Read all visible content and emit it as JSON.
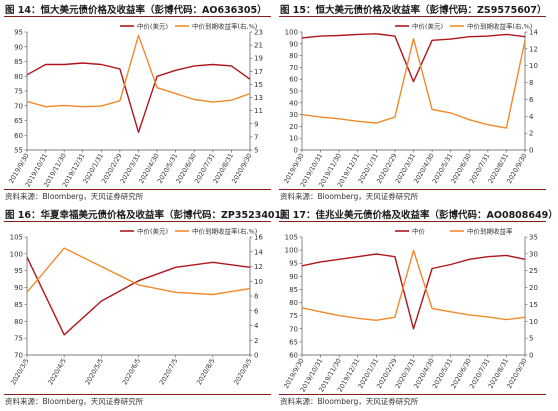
{
  "source_label": "资料来源：Bloomberg，天风证券研究所",
  "colors": {
    "price": "#b0161c",
    "yield": "#f08a2c",
    "rule": "#8b1c1c"
  },
  "panels": [
    {
      "title": "图 14：恒大美元债价格及收益率（彭博代码：AO636305）",
      "source": "资料来源：Bloomberg，天风证券研究所",
      "chart_data": {
        "type": "line",
        "x": [
          "2019/9/30",
          "2019/10/31",
          "2019/11/30",
          "2019/12/31",
          "2020/1/31",
          "2020/2/29",
          "2020/3/31",
          "2020/4/30",
          "2020/5/31",
          "2020/6/30",
          "2020/7/31",
          "2020/8/31",
          "2020/9/30"
        ],
        "ylim": [
          55,
          95
        ],
        "y2lim": [
          5,
          23
        ],
        "yticks": [
          55,
          60,
          65,
          70,
          75,
          80,
          85,
          90,
          95
        ],
        "y2ticks": [
          5,
          7,
          9,
          11,
          13,
          15,
          17,
          19,
          21,
          23
        ],
        "series": [
          {
            "name": "中价(美元)",
            "axis": "left",
            "values": [
              80.5,
              84.0,
              84.0,
              84.5,
              84.0,
              82.5,
              61.0,
              80.0,
              82.0,
              83.5,
              84.0,
              83.5,
              79.0
            ]
          },
          {
            "name": "中价到期收益率(右,%)",
            "axis": "right",
            "values": [
              12.4,
              11.6,
              11.8,
              11.6,
              11.7,
              12.5,
              22.5,
              14.5,
              13.6,
              12.7,
              12.3,
              12.6,
              13.6
            ]
          }
        ]
      }
    },
    {
      "title": "图 15：恒大美元债价格及收益率（彭博代码：ZS9575607）",
      "source": "资料来源：Bloomberg，天风证券研究所",
      "chart_data": {
        "type": "line",
        "x": [
          "2019/9/30",
          "2019/10/31",
          "2019/11/30",
          "2019/12/31",
          "2020/1/31",
          "2020/2/29",
          "2020/3/31",
          "2020/4/30",
          "2020/5/31",
          "2020/6/30",
          "2020/7/31",
          "2020/8/31",
          "2020/9/30"
        ],
        "ylim": [
          0,
          100
        ],
        "y2lim": [
          0,
          14
        ],
        "yticks": [
          0,
          10,
          20,
          30,
          40,
          50,
          60,
          70,
          80,
          90,
          100
        ],
        "y2ticks": [
          0,
          2,
          4,
          6,
          8,
          10,
          12,
          14
        ],
        "series": [
          {
            "name": "中价(美元)",
            "axis": "left",
            "values": [
              95.0,
              96.5,
              97.0,
              98.0,
              98.5,
              96.5,
              58.0,
              93.0,
              94.0,
              96.0,
              96.5,
              98.0,
              96.0
            ]
          },
          {
            "name": "中价到期收益率(右,%)",
            "axis": "right",
            "values": [
              4.2,
              3.9,
              3.7,
              3.4,
              3.2,
              3.9,
              13.2,
              4.8,
              4.4,
              3.6,
              3.0,
              2.6,
              13.0
            ]
          }
        ]
      }
    },
    {
      "title": "图 16：华夏幸福美元债价格及收益率（彭博代码：ZP3523401）",
      "source": "资料来源：Bloomberg，天风证券研究所",
      "chart_data": {
        "type": "line",
        "x": [
          "2020/3/5",
          "2020/4/5",
          "2020/5/5",
          "2020/6/5",
          "2020/7/5",
          "2020/8/5",
          "2020/9/5"
        ],
        "ylim": [
          70,
          105
        ],
        "y2lim": [
          0,
          16
        ],
        "yticks": [
          70,
          75,
          80,
          85,
          90,
          95,
          100,
          105
        ],
        "y2ticks": [
          0,
          2,
          4,
          6,
          8,
          10,
          12,
          14,
          16
        ],
        "series": [
          {
            "name": "中价(美元)",
            "axis": "left",
            "values": [
              99.0,
              76.0,
              86.0,
              92.0,
              96.0,
              97.5,
              96.0
            ]
          },
          {
            "name": "中价到期收益率(右,%)",
            "axis": "right",
            "values": [
              8.5,
              14.5,
              12.0,
              9.5,
              8.5,
              8.2,
              9.0
            ]
          }
        ]
      }
    },
    {
      "title": "图 17：佳兆业美元债价格及收益率（彭博代码：AO0808649）",
      "source": "资料来源：Bloomberg，天风证券研究所",
      "chart_data": {
        "type": "line",
        "x": [
          "2019/9/30",
          "2019/10/31",
          "2019/11/30",
          "2019/12/31",
          "2020/1/31",
          "2020/2/29",
          "2020/3/31",
          "2020/4/30",
          "2020/5/31",
          "2020/6/30",
          "2020/7/31",
          "2020/8/31",
          "2020/9/30"
        ],
        "ylim": [
          60,
          105
        ],
        "y2lim": [
          0,
          35
        ],
        "yticks": [
          60,
          65,
          70,
          75,
          80,
          85,
          90,
          95,
          100,
          105
        ],
        "y2ticks": [
          0,
          5,
          10,
          15,
          20,
          25,
          30,
          35
        ],
        "series": [
          {
            "name": "中价",
            "axis": "left",
            "values": [
              94.0,
              95.5,
              96.5,
              97.5,
              98.5,
              97.5,
              70.0,
              93.0,
              94.5,
              96.5,
              97.5,
              98.0,
              96.5
            ]
          },
          {
            "name": "中价到期收益率",
            "axis": "right",
            "values": [
              14.0,
              12.8,
              11.7,
              10.9,
              10.3,
              11.2,
              31.0,
              13.8,
              12.8,
              11.9,
              11.3,
              10.5,
              11.2
            ]
          }
        ]
      }
    }
  ]
}
